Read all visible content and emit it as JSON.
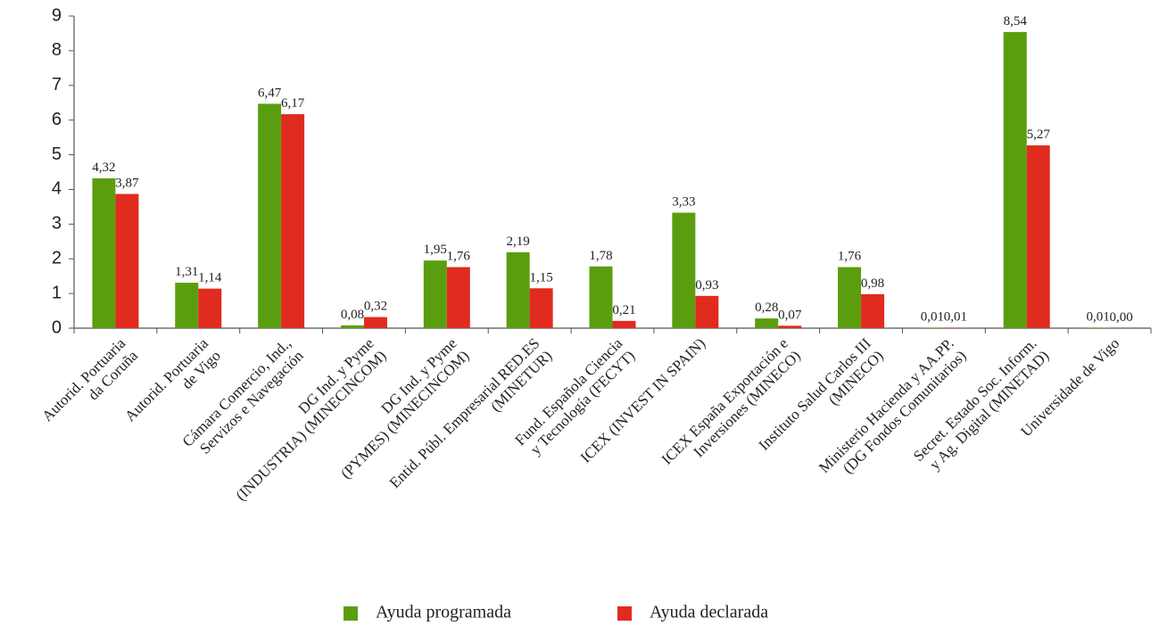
{
  "chart_data": {
    "type": "bar",
    "categories": [
      [
        "Autorid. Portuaria",
        "da Coruña"
      ],
      [
        "Autorid. Portuaria",
        "de Vigo"
      ],
      [
        "Cámara Comercio, Ind.,",
        "Servizos e Navegación"
      ],
      [
        "DG Ind. y Pyme",
        "(INDUSTRIA) (MINECINCOM)"
      ],
      [
        "DG Ind. y Pyme",
        "(PYMES) (MINECINCOM)"
      ],
      [
        "Entid. Públ. Empresarial RED.ES",
        "(MINETUR)"
      ],
      [
        "Fund. Española Ciencia",
        "y Tecnología (FECYT)"
      ],
      [
        "ICEX (INVEST IN SPAIN)"
      ],
      [
        "ICEX España Exportación e",
        "Inversiones (MINECO)"
      ],
      [
        "Instituto Salud Carlos III",
        "(MINECO)"
      ],
      [
        "Ministerio Hacienda y AA.PP.",
        "(DG Fondos Comunitarios)"
      ],
      [
        "Secret. Estado Soc. Inform.",
        "y Ag. Digital (MINETAD)"
      ],
      [
        "Universidade de Vigo"
      ]
    ],
    "series": [
      {
        "name": "Ayuda programada",
        "color": "#5a9e10",
        "values": [
          4.32,
          1.31,
          6.47,
          0.08,
          1.95,
          2.19,
          1.78,
          3.33,
          0.28,
          1.76,
          0.01,
          8.54,
          0.01
        ],
        "value_labels": [
          "4,32",
          "1,31",
          "6,47",
          "0,08",
          "1,95",
          "2,19",
          "1,78",
          "3,33",
          "0,28",
          "1,76",
          "0,01",
          "8,54",
          "0,01"
        ]
      },
      {
        "name": "Ayuda declarada",
        "color": "#e02b1f",
        "values": [
          3.87,
          1.14,
          6.17,
          0.32,
          1.76,
          1.15,
          0.21,
          0.93,
          0.07,
          0.98,
          0.01,
          5.27,
          0.0
        ],
        "value_labels": [
          "3,87",
          "1,14",
          "6,17",
          "0,32",
          "1,76",
          "1,15",
          "0,21",
          "0,93",
          "0,07",
          "0,98",
          "0,01",
          "5,27",
          "0,00"
        ]
      }
    ],
    "ylim": [
      0,
      9
    ],
    "yticks": [
      0,
      1,
      2,
      3,
      4,
      5,
      6,
      7,
      8,
      9
    ],
    "legend": "bottom"
  }
}
